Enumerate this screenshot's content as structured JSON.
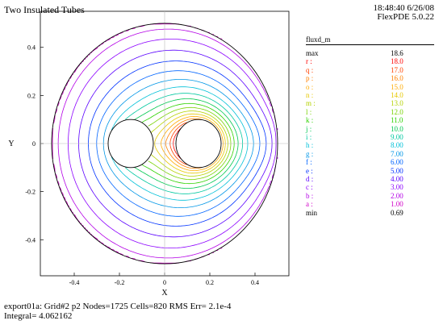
{
  "title": "Two Insulated Tubes",
  "stamp": {
    "time_date": "18:48:40 6/26/08",
    "software": "FlexPDE 5.0.22"
  },
  "legend": {
    "title": "fluxd_m",
    "entries": [
      {
        "label": "max",
        "value": "18.6",
        "color": "#000000"
      },
      {
        "label": "r :",
        "value": "18.0",
        "color": "#ff0000"
      },
      {
        "label": "q :",
        "value": "17.0",
        "color": "#ff4000"
      },
      {
        "label": "p :",
        "value": "16.0",
        "color": "#ff8000"
      },
      {
        "label": "o :",
        "value": "15.0",
        "color": "#ffaa00"
      },
      {
        "label": "n :",
        "value": "14.0",
        "color": "#e6c800"
      },
      {
        "label": "m :",
        "value": "13.0",
        "color": "#b4d200"
      },
      {
        "label": "l :",
        "value": "12.0",
        "color": "#78d200"
      },
      {
        "label": "k :",
        "value": "11.0",
        "color": "#2ed200"
      },
      {
        "label": "j :",
        "value": "10.0",
        "color": "#00c850"
      },
      {
        "label": "i :",
        "value": "9.00",
        "color": "#00c8a0"
      },
      {
        "label": "h :",
        "value": "8.00",
        "color": "#00c0d8"
      },
      {
        "label": "g :",
        "value": "7.00",
        "color": "#0096e6"
      },
      {
        "label": "f :",
        "value": "6.00",
        "color": "#0064ff"
      },
      {
        "label": "e :",
        "value": "5.00",
        "color": "#0032ff"
      },
      {
        "label": "d :",
        "value": "4.00",
        "color": "#5a00ff"
      },
      {
        "label": "c :",
        "value": "3.00",
        "color": "#8c00ff"
      },
      {
        "label": "b :",
        "value": "2.00",
        "color": "#b400e6"
      },
      {
        "label": "a :",
        "value": "1.00",
        "color": "#d200c8"
      },
      {
        "label": "min",
        "value": "0.69",
        "color": "#000000"
      }
    ]
  },
  "footer": {
    "line1": "export01a:  Grid#2  p2  Nodes=1725 Cells=820 RMS Err= 2.1e-4",
    "line2": "Integral=  4.062162"
  },
  "chart_data": {
    "type": "contour",
    "title": "Two Insulated Tubes",
    "xlabel": "X",
    "ylabel": "Y",
    "xlim": [
      -0.55,
      0.55
    ],
    "ylim": [
      -0.55,
      0.55
    ],
    "x_ticks": [
      "-0.4",
      "-0.2",
      "0",
      "0.2",
      "0.4"
    ],
    "y_ticks": [
      "0.4",
      "0.2",
      "0",
      "-0.2",
      "-0.4"
    ],
    "x_tick_values": [
      -0.4,
      -0.2,
      0,
      0.2,
      0.4
    ],
    "y_tick_values": [
      0.4,
      0.2,
      0,
      -0.2,
      -0.4
    ],
    "domain": {
      "outer_radius": 0.5,
      "tube1_center": [
        -0.15,
        0
      ],
      "tube1_radius": 0.1,
      "tube2_center": [
        0.15,
        0
      ],
      "tube2_radius": 0.1
    },
    "field": "fluxd_m",
    "levels": [
      1,
      2,
      3,
      4,
      5,
      6,
      7,
      8,
      9,
      10,
      11,
      12,
      13,
      14,
      15,
      16,
      17,
      18
    ],
    "max": 18.6,
    "min": 0.69
  }
}
